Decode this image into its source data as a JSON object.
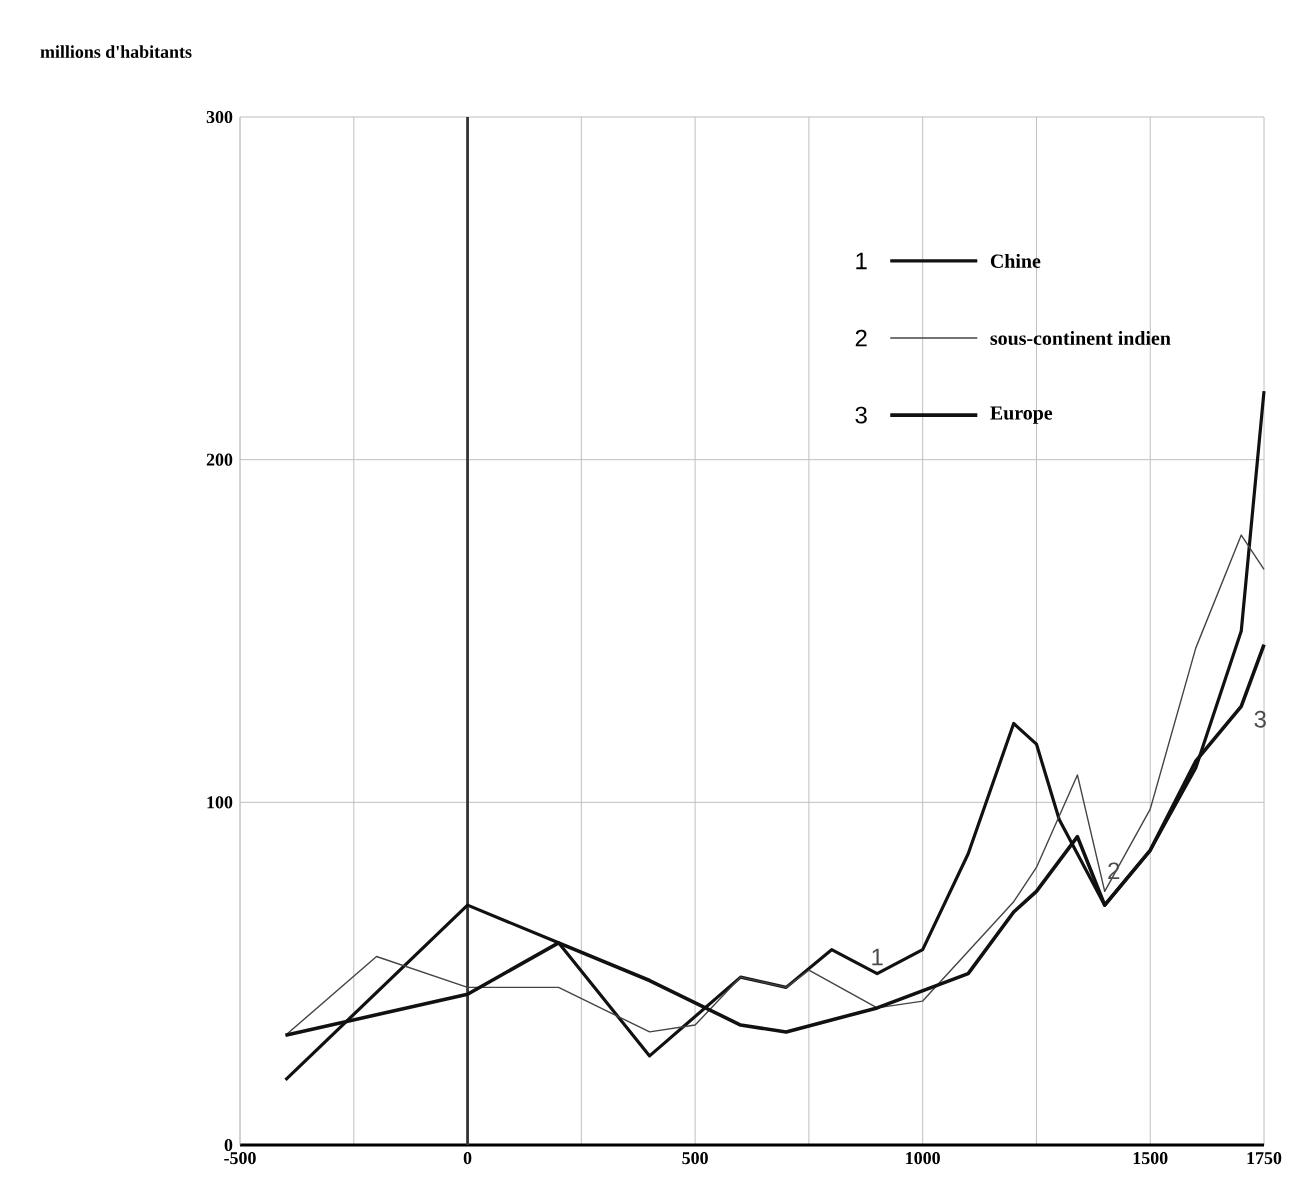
{
  "chart_data": {
    "type": "line",
    "ylabel": "millions d'habitants",
    "xlim": [
      -500,
      1750
    ],
    "ylim": [
      0,
      300
    ],
    "xticks": [
      -500,
      {
        "value": -250,
        "label": null
      },
      0,
      {
        "value": 250,
        "label": null
      },
      500,
      {
        "value": 750,
        "label": null
      },
      1000,
      {
        "value": 1250,
        "label": null
      },
      1500,
      1750
    ],
    "yticks": [
      0,
      100,
      200,
      300
    ],
    "grid": true,
    "legend": "top right",
    "ref_lines": [
      {
        "axis": "x",
        "value": 0,
        "color": "#333333"
      }
    ],
    "series": [
      {
        "name": "Chine",
        "color": "#111111",
        "x": [
          -400,
          0,
          200,
          400,
          600,
          700,
          800,
          900,
          1000,
          1100,
          1200,
          1250,
          1300,
          1400,
          1500,
          1600,
          1700,
          1750
        ],
        "values": [
          19,
          70,
          59,
          26,
          49,
          46,
          57,
          50,
          57,
          85,
          123,
          117,
          95,
          70,
          86,
          110,
          150,
          220
        ]
      },
      {
        "name": "sous-continent indien",
        "color": "#444444",
        "x": [
          -400,
          -200,
          0,
          200,
          400,
          500,
          600,
          700,
          750,
          900,
          1000,
          1200,
          1250,
          1340,
          1400,
          1500,
          1600,
          1700,
          1750
        ],
        "values": [
          32,
          55,
          46,
          46,
          33,
          35,
          49,
          46,
          51,
          40,
          42,
          71,
          81,
          108,
          74,
          98,
          145,
          178,
          168
        ]
      },
      {
        "name": "Europe",
        "color": "#111111",
        "x": [
          -400,
          -200,
          0,
          200,
          400,
          600,
          700,
          900,
          1100,
          1200,
          1250,
          1340,
          1400,
          1500,
          1600,
          1700,
          1750
        ],
        "values": [
          32,
          38,
          44,
          59,
          48,
          35,
          33,
          40,
          50,
          68,
          74,
          90,
          70,
          86,
          112,
          128,
          146
        ]
      }
    ],
    "annotations": [
      "1",
      "2",
      "3",
      "1",
      "2",
      "3"
    ]
  }
}
